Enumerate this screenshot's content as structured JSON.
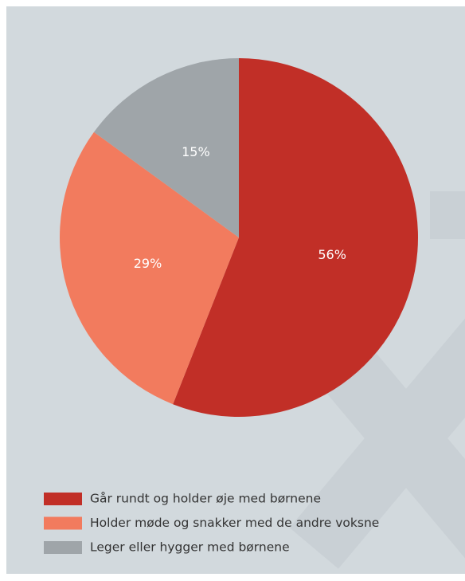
{
  "chart_data": {
    "type": "pie",
    "categories": [
      "Går rundt og holder øje med børnene",
      "Holder møde og snakker med de andre voksne",
      "Leger eller hygger med børnene"
    ],
    "values": [
      56,
      29,
      15
    ],
    "value_labels": [
      "56%",
      "29%",
      "15%"
    ],
    "colors": [
      "#c12f27",
      "#f27b5e",
      "#9fa5a9"
    ]
  }
}
